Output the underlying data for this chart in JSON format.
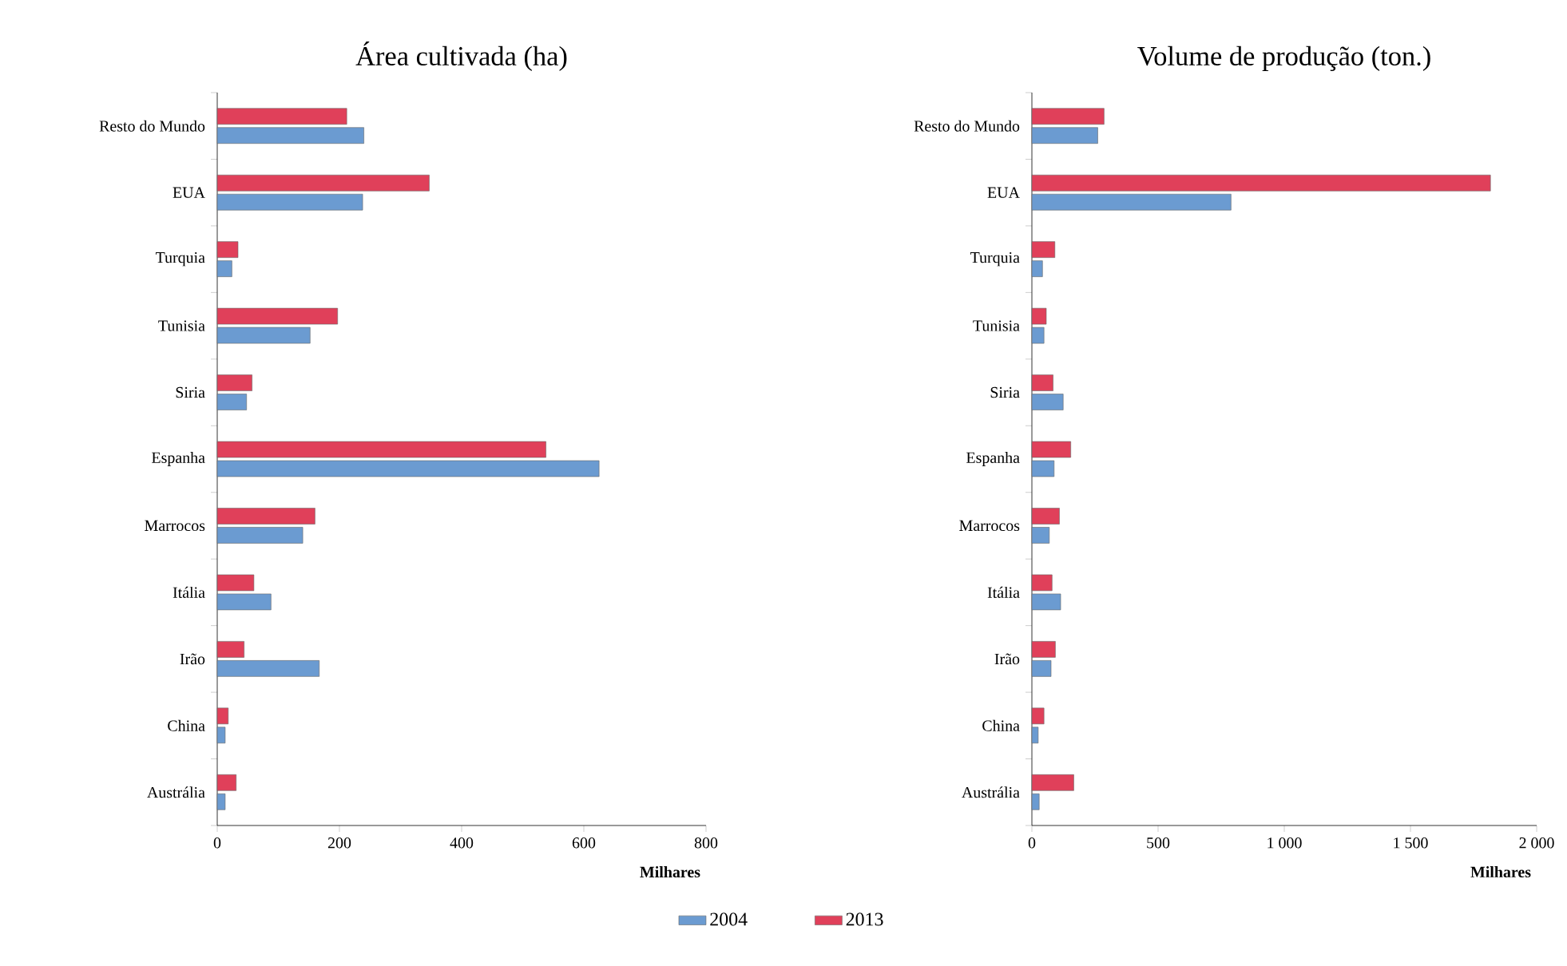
{
  "chart_data": [
    {
      "type": "bar",
      "orientation": "horizontal",
      "title": "Área cultivada (ha)",
      "xlabel": "Milhares",
      "categories": [
        "Resto do Mundo",
        "EUA",
        "Turquia",
        "Tunisia",
        "Siria",
        "Espanha",
        "Marrocos",
        "Itália",
        "Irão",
        "China",
        "Austrália"
      ],
      "series": [
        {
          "name": "2004",
          "color": "#6b9bd1",
          "values": [
            240,
            238,
            24,
            152,
            48,
            625,
            140,
            88,
            167,
            13,
            13
          ]
        },
        {
          "name": "2013",
          "color": "#e0405a",
          "values": [
            212,
            347,
            34,
            197,
            57,
            538,
            160,
            60,
            44,
            18,
            31
          ]
        }
      ],
      "xlim": [
        0,
        800
      ],
      "xticks": [
        0,
        200,
        400,
        600,
        800
      ],
      "legend": "bottom"
    },
    {
      "type": "bar",
      "orientation": "horizontal",
      "title": "Volume de produção (ton.)",
      "xlabel": "Milhares",
      "categories": [
        "Resto do Mundo",
        "EUA",
        "Turquia",
        "Tunisia",
        "Siria",
        "Espanha",
        "Marrocos",
        "Itália",
        "Irão",
        "China",
        "Austrália"
      ],
      "series": [
        {
          "color": "#6b9bd1",
          "values": [
            261,
            789,
            42,
            48,
            124,
            88,
            69,
            114,
            76,
            25,
            29
          ]
        },
        {
          "color": "#e0405a",
          "values": [
            286,
            1817,
            91,
            57,
            84,
            154,
            109,
            80,
            93,
            48,
            166
          ]
        }
      ],
      "xlim": [
        0,
        2000
      ],
      "xticks": [
        0,
        500,
        {
          "value": 1000,
          "label": "1 000"
        },
        {
          "value": 1500,
          "label": "1 500"
        },
        {
          "value": 2000,
          "label": "2 000"
        }
      ]
    }
  ]
}
